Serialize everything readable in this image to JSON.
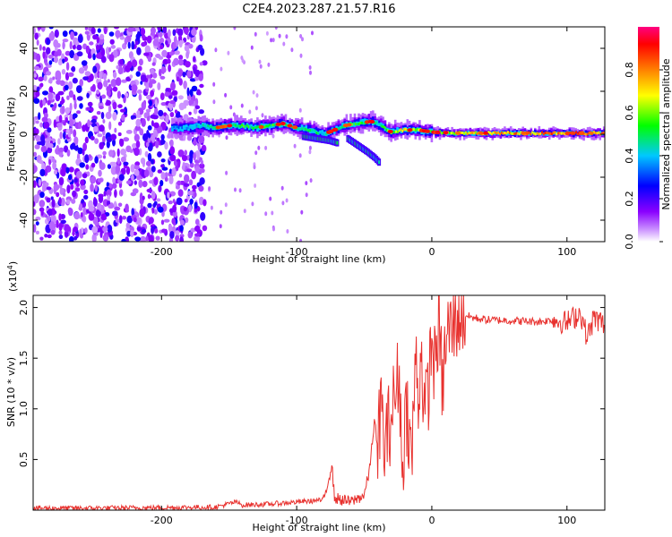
{
  "figure": {
    "title": "C2E4.2023.287.21.57.R16"
  },
  "chart_data": [
    {
      "type": "heatmap",
      "xlabel": "Height of straight line (km)",
      "ylabel": "Frequency (Hz)",
      "xlim": [
        -295,
        128
      ],
      "ylim": [
        -50,
        50
      ],
      "x_ticks": [
        -200,
        -100,
        0,
        100
      ],
      "x_tick_labels": [
        "-200",
        "-100",
        "0",
        "100"
      ],
      "y_ticks": [
        -40,
        -20,
        0,
        20,
        40
      ],
      "y_tick_labels": [
        "-40",
        "-20",
        "0",
        "20",
        "40"
      ],
      "colorbar": {
        "label": "Normalized spectral amplitude",
        "range": [
          0,
          1
        ],
        "ticks": [
          0.0,
          0.2,
          0.4,
          0.6,
          0.8
        ],
        "tick_labels": [
          "0.0",
          "0.2",
          "0.4",
          "0.6",
          "0.8"
        ],
        "colors": [
          "#ffffff",
          "#8a00ff",
          "#0000ff",
          "#00c8ff",
          "#00ff00",
          "#ffff00",
          "#ff8000",
          "#ff0000",
          "#ff0080"
        ]
      },
      "noise_region_x": [
        -295,
        -168
      ],
      "trace": {
        "x": [
          -192,
          -180,
          -170,
          -160,
          -150,
          -140,
          -130,
          -120,
          -110,
          -100,
          -90,
          -80,
          -72,
          -65,
          -55,
          -45,
          -40,
          -30,
          -20,
          -10,
          0,
          20,
          60,
          100,
          128
        ],
        "y": [
          3,
          3,
          4,
          3,
          4,
          4,
          3,
          4,
          5,
          3,
          2,
          0,
          2,
          4,
          5,
          6,
          5,
          1,
          2,
          2,
          1,
          0.5,
          0.5,
          0.5,
          0.5
        ],
        "amp": [
          0.35,
          0.4,
          0.45,
          0.5,
          0.5,
          0.55,
          0.5,
          0.55,
          0.6,
          0.5,
          0.5,
          0.45,
          0.45,
          0.55,
          0.55,
          0.5,
          0.5,
          0.6,
          0.75,
          0.7,
          0.65,
          0.7,
          0.8,
          0.85,
          0.8
        ]
      },
      "branches": [
        {
          "x": [
            -95,
            -85,
            -75,
            -70
          ],
          "y": [
            -1,
            -2,
            -3,
            -4
          ]
        },
        {
          "x": [
            -62,
            -55,
            -48,
            -42,
            -39
          ],
          "y": [
            -2,
            -5,
            -8,
            -11,
            -13
          ]
        }
      ]
    },
    {
      "type": "line",
      "xlabel": "Height of straight line (km)",
      "ylabel": "SNR (10 * v/v)",
      "y_multiplier_label": "(x10",
      "y_multiplier_exponent": "4",
      "y_multiplier_close": ")",
      "xlim": [
        -295,
        128
      ],
      "ylim": [
        0,
        21200
      ],
      "x_ticks": [
        -200,
        -100,
        0,
        100
      ],
      "x_tick_labels": [
        "-200",
        "-100",
        "0",
        "100"
      ],
      "y_ticks": [
        5000,
        10000,
        15000,
        20000
      ],
      "y_tick_labels": [
        "0.5",
        "1.0",
        "1.5",
        "2.0"
      ],
      "line_color": "#e8312e",
      "series": [
        {
          "x": [
            -295,
            -250,
            -200,
            -160,
            -145,
            -140,
            -120,
            -100,
            -80,
            -74,
            -72,
            -60,
            -50,
            -46,
            -44,
            -42,
            -40,
            -38,
            -35,
            -30,
            -26,
            -24,
            -22,
            -20,
            -18,
            -15,
            -12,
            -10,
            -8,
            -5,
            -2,
            0,
            2,
            5,
            8,
            10,
            12,
            15,
            20,
            30,
            40,
            60,
            80,
            90,
            100,
            110,
            115,
            120,
            128
          ],
          "y": [
            200,
            200,
            250,
            300,
            800,
            500,
            600,
            800,
            1000,
            4500,
            1200,
            800,
            1500,
            4000,
            7000,
            9000,
            5000,
            11000,
            6000,
            9500,
            12000,
            14000,
            3000,
            9000,
            10000,
            4500,
            15000,
            11000,
            16000,
            9000,
            13000,
            17000,
            14000,
            18500,
            12000,
            16000,
            17500,
            18000,
            19500,
            19000,
            18800,
            18700,
            18600,
            18800,
            18500,
            19500,
            17000,
            19000,
            18300
          ]
        }
      ]
    }
  ]
}
